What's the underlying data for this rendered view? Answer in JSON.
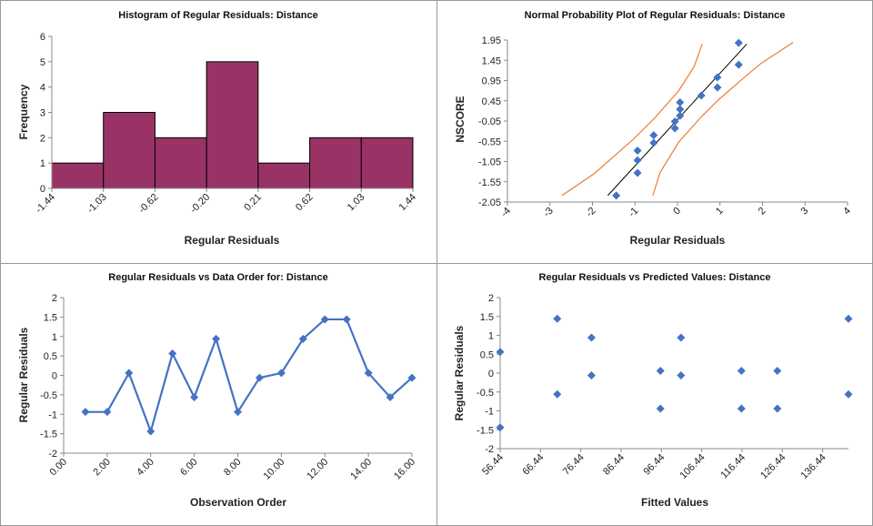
{
  "colors": {
    "bar": "#993366",
    "marker": "#4472C4",
    "fit_line": "#000000",
    "band": "#ED7D31",
    "axis": "#888888",
    "panel_border": "#999999"
  },
  "chart_data": [
    {
      "type": "bar",
      "title": "Histogram of Regular Residuals: Distance",
      "xlabel": "Regular Residuals",
      "ylabel": "Frequency",
      "bin_edges": [
        "-1.44",
        "-1.03",
        "-0.62",
        "-0.20",
        "0.21",
        "0.62",
        "1.03",
        "1.44"
      ],
      "values": [
        1,
        3,
        2,
        5,
        1,
        2,
        2
      ],
      "ylim": [
        0,
        6
      ],
      "yticks": [
        "0",
        "1",
        "2",
        "3",
        "4",
        "5",
        "6"
      ],
      "grid": false
    },
    {
      "type": "scatter",
      "title": "Normal Probability Plot of Regular Residuals: Distance",
      "xlabel": "Regular Residuals",
      "ylabel": "NSCORE",
      "xlim": [
        -4,
        4
      ],
      "ylim": [
        -2.05,
        1.95
      ],
      "xticks": [
        "-4",
        "-3",
        "-2",
        "-1",
        "0",
        "1",
        "2",
        "3",
        "4"
      ],
      "yticks": [
        "-2.05",
        "-1.55",
        "-1.05",
        "-0.55",
        "-0.05",
        "0.45",
        "0.95",
        "1.45",
        "1.95"
      ],
      "points": [
        [
          -1.44,
          -1.89
        ],
        [
          -0.94,
          -1.33
        ],
        [
          -0.94,
          -1.02
        ],
        [
          -0.94,
          -0.78
        ],
        [
          -0.56,
          -0.59
        ],
        [
          -0.56,
          -0.4
        ],
        [
          -0.06,
          -0.23
        ],
        [
          -0.06,
          -0.06
        ],
        [
          0.06,
          0.08
        ],
        [
          0.06,
          0.24
        ],
        [
          0.06,
          0.41
        ],
        [
          0.56,
          0.58
        ],
        [
          0.94,
          0.78
        ],
        [
          0.94,
          1.03
        ],
        [
          1.44,
          1.34
        ],
        [
          1.44,
          1.88
        ]
      ],
      "fit_line": [
        [
          -1.64,
          -1.89
        ],
        [
          1.63,
          1.85
        ]
      ],
      "lower_band": [
        [
          -2.72,
          -1.89
        ],
        [
          -1.96,
          -1.35
        ],
        [
          -1.04,
          -0.5
        ],
        [
          -0.54,
          0.02
        ],
        [
          0.03,
          0.7
        ],
        [
          0.39,
          1.29
        ],
        [
          0.58,
          1.85
        ]
      ],
      "upper_band": [
        [
          -0.58,
          -1.89
        ],
        [
          -0.41,
          -1.32
        ],
        [
          0.03,
          -0.57
        ],
        [
          0.53,
          0.02
        ],
        [
          0.96,
          0.47
        ],
        [
          1.53,
          0.99
        ],
        [
          1.96,
          1.37
        ],
        [
          2.72,
          1.89
        ]
      ],
      "grid": false
    },
    {
      "type": "line",
      "title": "Regular Residuals vs Data Order for: Distance",
      "xlabel": "Observation Order",
      "ylabel": "Regular Residuals",
      "xlim": [
        0,
        16
      ],
      "ylim": [
        -2,
        2
      ],
      "xticks": [
        "0.00",
        "2.00",
        "4.00",
        "6.00",
        "8.00",
        "10.00",
        "12.00",
        "14.00",
        "16.00"
      ],
      "yticks": [
        "-2",
        "-1.5",
        "-1",
        "-0.5",
        "0",
        "0.5",
        "1",
        "1.5",
        "2"
      ],
      "x": [
        1,
        2,
        3,
        4,
        5,
        6,
        7,
        8,
        9,
        10,
        11,
        12,
        13,
        14,
        15,
        16
      ],
      "y": [
        -0.94,
        -0.94,
        0.06,
        -1.44,
        0.56,
        -0.56,
        0.94,
        -0.94,
        -0.06,
        0.06,
        0.94,
        1.44,
        1.44,
        0.06,
        -0.56,
        -0.06
      ],
      "grid": false
    },
    {
      "type": "scatter",
      "title": "Regular Residuals vs Predicted Values: Distance",
      "xlabel": "Fitted Values",
      "ylabel": "Regular Residuals",
      "xlim": [
        56.44,
        142.84
      ],
      "ylim": [
        -2,
        2
      ],
      "xticks": [
        "56.44",
        "66.44",
        "76.44",
        "86.44",
        "96.44",
        "106.44",
        "116.44",
        "126.44",
        "136.44"
      ],
      "yticks": [
        "-2",
        "-1.5",
        "-1",
        "-0.5",
        "0",
        "0.5",
        "1",
        "1.5",
        "2"
      ],
      "points": [
        [
          56.44,
          0.56
        ],
        [
          56.44,
          -1.44
        ],
        [
          70.6,
          1.44
        ],
        [
          70.6,
          -0.56
        ],
        [
          79.1,
          0.94
        ],
        [
          79.1,
          -0.06
        ],
        [
          96.2,
          0.06
        ],
        [
          96.2,
          -0.94
        ],
        [
          101.3,
          0.94
        ],
        [
          101.3,
          -0.06
        ],
        [
          116.3,
          0.06
        ],
        [
          116.3,
          -0.94
        ],
        [
          125.2,
          0.06
        ],
        [
          125.2,
          -0.94
        ],
        [
          142.84,
          1.44
        ],
        [
          142.84,
          -0.56
        ]
      ],
      "grid": false
    }
  ]
}
